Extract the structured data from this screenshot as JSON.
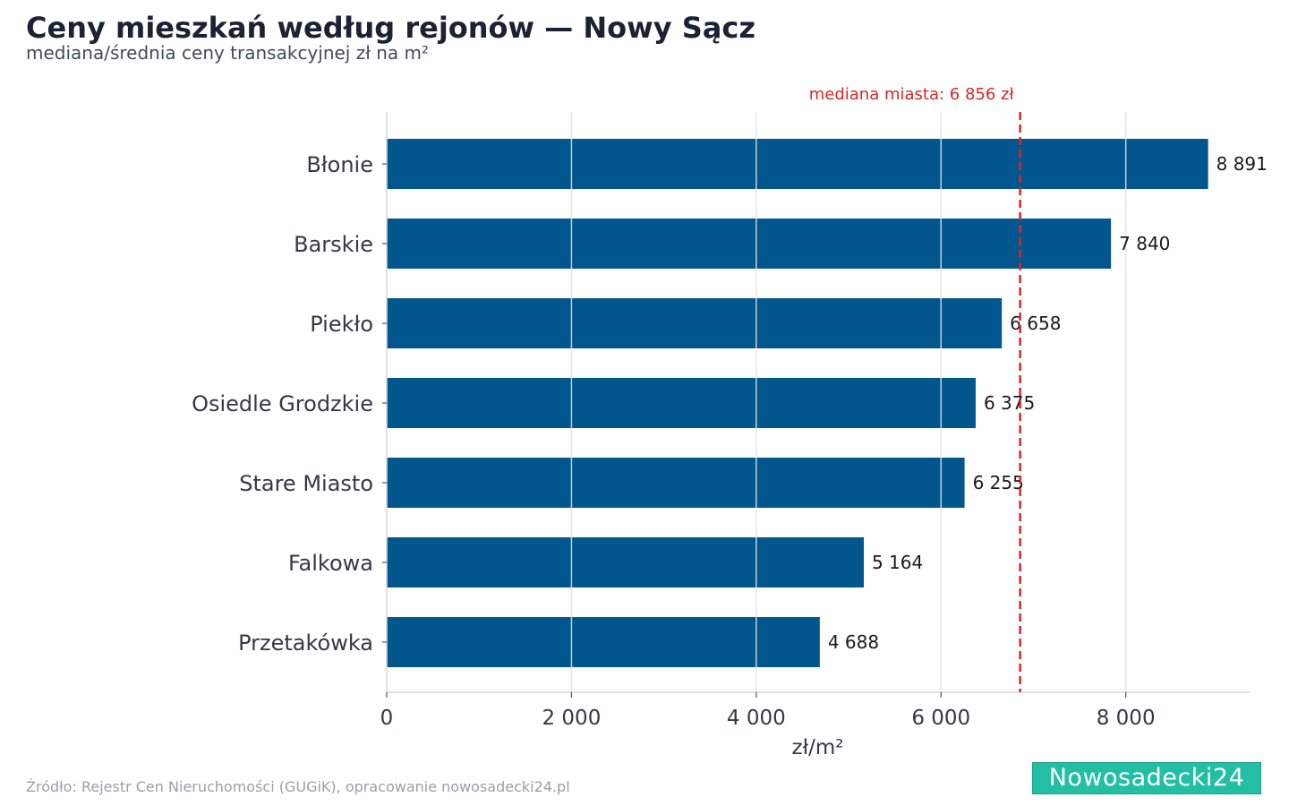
{
  "header": {
    "title": "Ceny mieszkań według rejonów — Nowy Sącz",
    "subtitle": "mediana/średnia ceny transakcyjnej zł na m²"
  },
  "footer": {
    "source": "Źródło: Rejestr Cen Nieruchomości (GUGiK), opracowanie nowosadecki24.pl",
    "logo_text": "Nowosadecki24"
  },
  "colors": {
    "bar": "#01568e",
    "reference": "#d62828",
    "grid": "#e6e6e6",
    "logo_bg": "#23bfa4"
  },
  "chart_data": {
    "type": "bar",
    "orientation": "horizontal",
    "title": "Ceny mieszkań według rejonów — Nowy Sącz",
    "subtitle": "mediana/średnia ceny transakcyjnej zł na m²",
    "categories": [
      "Błonie",
      "Barskie",
      "Piekło",
      "Osiedle Grodzkie",
      "Stare Miasto",
      "Falkowa",
      "Przetakówka"
    ],
    "values": [
      8891,
      7840,
      6658,
      6375,
      6255,
      5164,
      4688
    ],
    "value_labels": [
      "8 891",
      "7 840",
      "6 658",
      "6 375",
      "6 255",
      "5 164",
      "4 688"
    ],
    "xlabel": "zł/m²",
    "ylabel": "",
    "xlim": [
      0,
      9350
    ],
    "xticks": [
      0,
      2000,
      4000,
      6000,
      8000
    ],
    "xtick_labels": [
      "0",
      "2 000",
      "4 000",
      "6 000",
      "8 000"
    ],
    "grid": "vertical",
    "reference_line": {
      "value": 6856,
      "label": "mediana miasta: 6 856 zł",
      "style": "dashed"
    }
  }
}
